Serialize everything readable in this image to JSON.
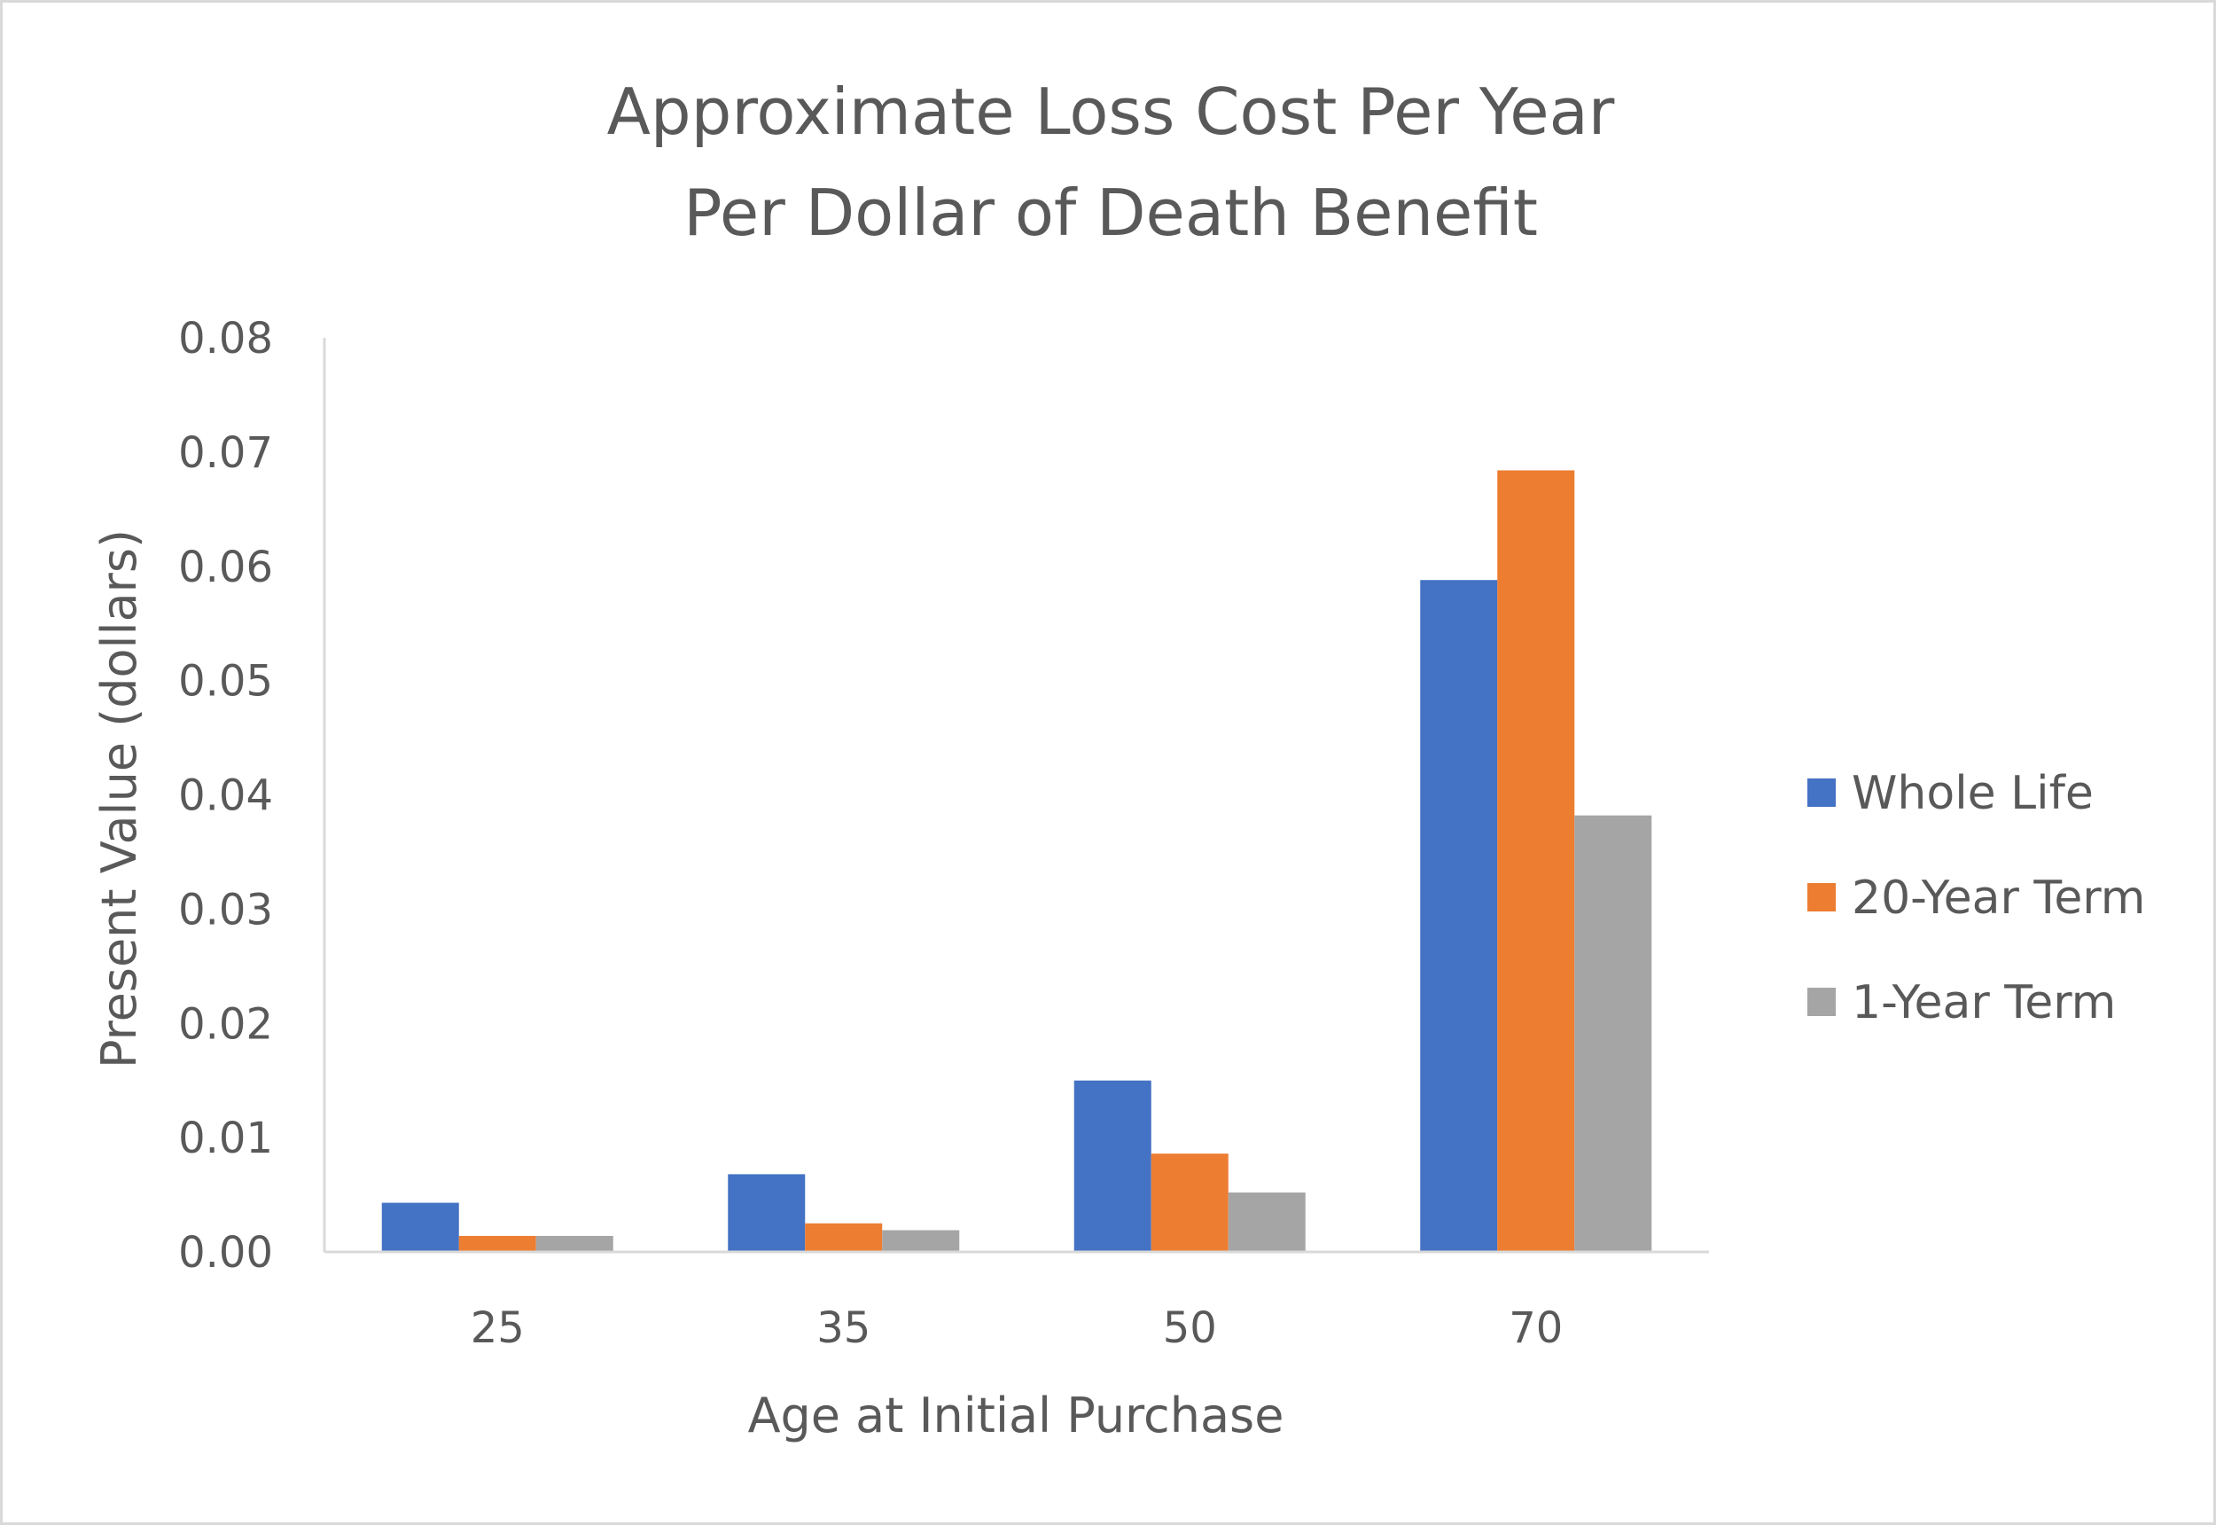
{
  "chart_data": {
    "type": "bar",
    "title": "Approximate Loss Cost Per Year",
    "title_line2": "Per Dollar of Death Benefit",
    "xlabel": "Age at Initial Purchase",
    "ylabel": "Present Value (dollars)",
    "ylim": [
      0,
      0.08
    ],
    "yticks": [
      "0.00",
      "0.01",
      "0.02",
      "0.03",
      "0.04",
      "0.05",
      "0.06",
      "0.07",
      "0.08"
    ],
    "categories": [
      "25",
      "35",
      "50",
      "70"
    ],
    "series": [
      {
        "name": "Whole Life",
        "color": "#4472c4",
        "values": [
          0.0043,
          0.0068,
          0.015,
          0.0588
        ]
      },
      {
        "name": "20-Year Term",
        "color": "#ed7d31",
        "values": [
          0.0014,
          0.0025,
          0.0086,
          0.0684
        ]
      },
      {
        "name": "1-Year Term",
        "color": "#a5a5a5",
        "values": [
          0.0014,
          0.0019,
          0.0052,
          0.0382
        ]
      }
    ],
    "legend_position": "right",
    "grid": false
  }
}
